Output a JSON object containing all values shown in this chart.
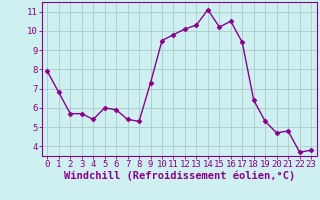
{
  "x": [
    0,
    1,
    2,
    3,
    4,
    5,
    6,
    7,
    8,
    9,
    10,
    11,
    12,
    13,
    14,
    15,
    16,
    17,
    18,
    19,
    20,
    21,
    22,
    23
  ],
  "y": [
    7.9,
    6.8,
    5.7,
    5.7,
    5.4,
    6.0,
    5.9,
    5.4,
    5.3,
    7.3,
    9.5,
    9.8,
    10.1,
    10.3,
    11.1,
    10.2,
    10.5,
    9.4,
    6.4,
    5.3,
    4.7,
    4.8,
    3.7,
    3.8
  ],
  "line_color": "#8B008B",
  "marker": "D",
  "marker_size": 2.5,
  "line_width": 1.0,
  "bg_color": "#cff0f0",
  "grid_color": "#aacccc",
  "xlabel": "Windchill (Refroidissement éolien,°C)",
  "xlabel_color": "#8B008B",
  "tick_color": "#8B008B",
  "ylim": [
    3.5,
    11.5
  ],
  "xlim": [
    -0.5,
    23.5
  ],
  "yticks": [
    4,
    5,
    6,
    7,
    8,
    9,
    10,
    11
  ],
  "xticks": [
    0,
    1,
    2,
    3,
    4,
    5,
    6,
    7,
    8,
    9,
    10,
    11,
    12,
    13,
    14,
    15,
    16,
    17,
    18,
    19,
    20,
    21,
    22,
    23
  ],
  "xlabel_fontsize": 7.5,
  "tick_fontsize": 6.5,
  "border_color": "#8B008B"
}
